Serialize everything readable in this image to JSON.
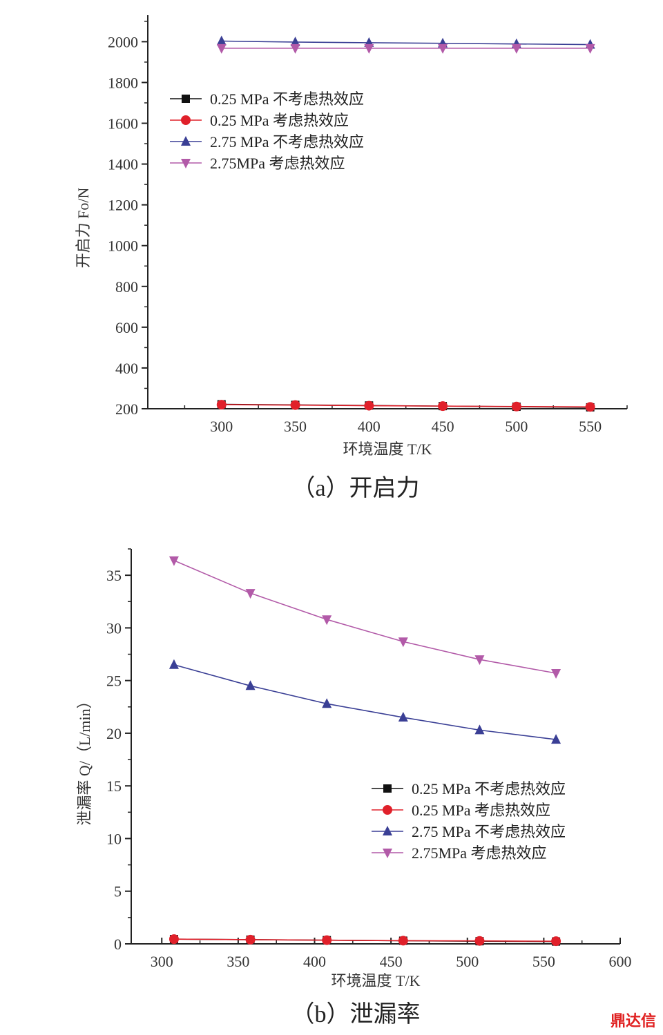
{
  "colors": {
    "s1": "#111111",
    "s2": "#e0202a",
    "s3": "#3a3f95",
    "s4": "#b25aa8",
    "axis": "#222222",
    "watermark": "#e02020"
  },
  "watermark": "鼎达信",
  "chart_data": [
    {
      "id": "a",
      "type": "line",
      "caption": "（a）开启力",
      "xlabel": "环境温度 T/K",
      "ylabel": "开启力 Fo/N",
      "xlim": [
        250,
        575
      ],
      "ylim": [
        200,
        2130
      ],
      "xticks": [
        300,
        350,
        400,
        450,
        500,
        550
      ],
      "yticks": [
        200,
        400,
        600,
        800,
        1000,
        1200,
        1400,
        1600,
        1800,
        2000
      ],
      "x": [
        300,
        350,
        400,
        450,
        500,
        550
      ],
      "legend_position": "top-left",
      "series": [
        {
          "name": "0.25 MPa 不考虑热效应",
          "marker": "square",
          "color": "#111111",
          "values": [
            222,
            219,
            216,
            213,
            210,
            207
          ]
        },
        {
          "name": "0.25 MPa 考虑热效应",
          "marker": "circle",
          "color": "#e0202a",
          "values": [
            220,
            218,
            215,
            213,
            211,
            209
          ]
        },
        {
          "name": "2.75 MPa 不考虑热效应",
          "marker": "triangle-up",
          "color": "#3a3f95",
          "values": [
            2003,
            1998,
            1995,
            1992,
            1989,
            1986
          ]
        },
        {
          "name": "2.75MPa 考虑热效应",
          "marker": "triangle-down",
          "color": "#b25aa8",
          "values": [
            1968,
            1968,
            1968,
            1968,
            1968,
            1968
          ]
        }
      ]
    },
    {
      "id": "b",
      "type": "line",
      "caption": "（b）泄漏率",
      "xlabel": "环境温度 T/K",
      "ylabel": "泄漏率 Q/（L/min）",
      "xlim": [
        280,
        600
      ],
      "ylim": [
        0,
        37.5
      ],
      "xticks": [
        300,
        350,
        400,
        450,
        500,
        550,
        600
      ],
      "yticks": [
        0,
        5,
        10,
        15,
        20,
        25,
        30,
        35
      ],
      "x": [
        308,
        358,
        408,
        458,
        508,
        558
      ],
      "legend_position": "center-right",
      "series": [
        {
          "name": "0.25 MPa 不考虑热效应",
          "marker": "square",
          "color": "#111111",
          "values": [
            0.45,
            0.4,
            0.35,
            0.3,
            0.25,
            0.22
          ]
        },
        {
          "name": "0.25 MPa 考虑热效应",
          "marker": "circle",
          "color": "#e0202a",
          "values": [
            0.45,
            0.4,
            0.35,
            0.3,
            0.28,
            0.25
          ]
        },
        {
          "name": "2.75 MPa 不考虑热效应",
          "marker": "triangle-up",
          "color": "#3a3f95",
          "values": [
            26.5,
            24.5,
            22.8,
            21.5,
            20.3,
            19.4
          ]
        },
        {
          "name": "2.75MPa 考虑热效应",
          "marker": "triangle-down",
          "color": "#b25aa8",
          "values": [
            36.4,
            33.3,
            30.8,
            28.7,
            27.0,
            25.7
          ]
        }
      ]
    }
  ]
}
